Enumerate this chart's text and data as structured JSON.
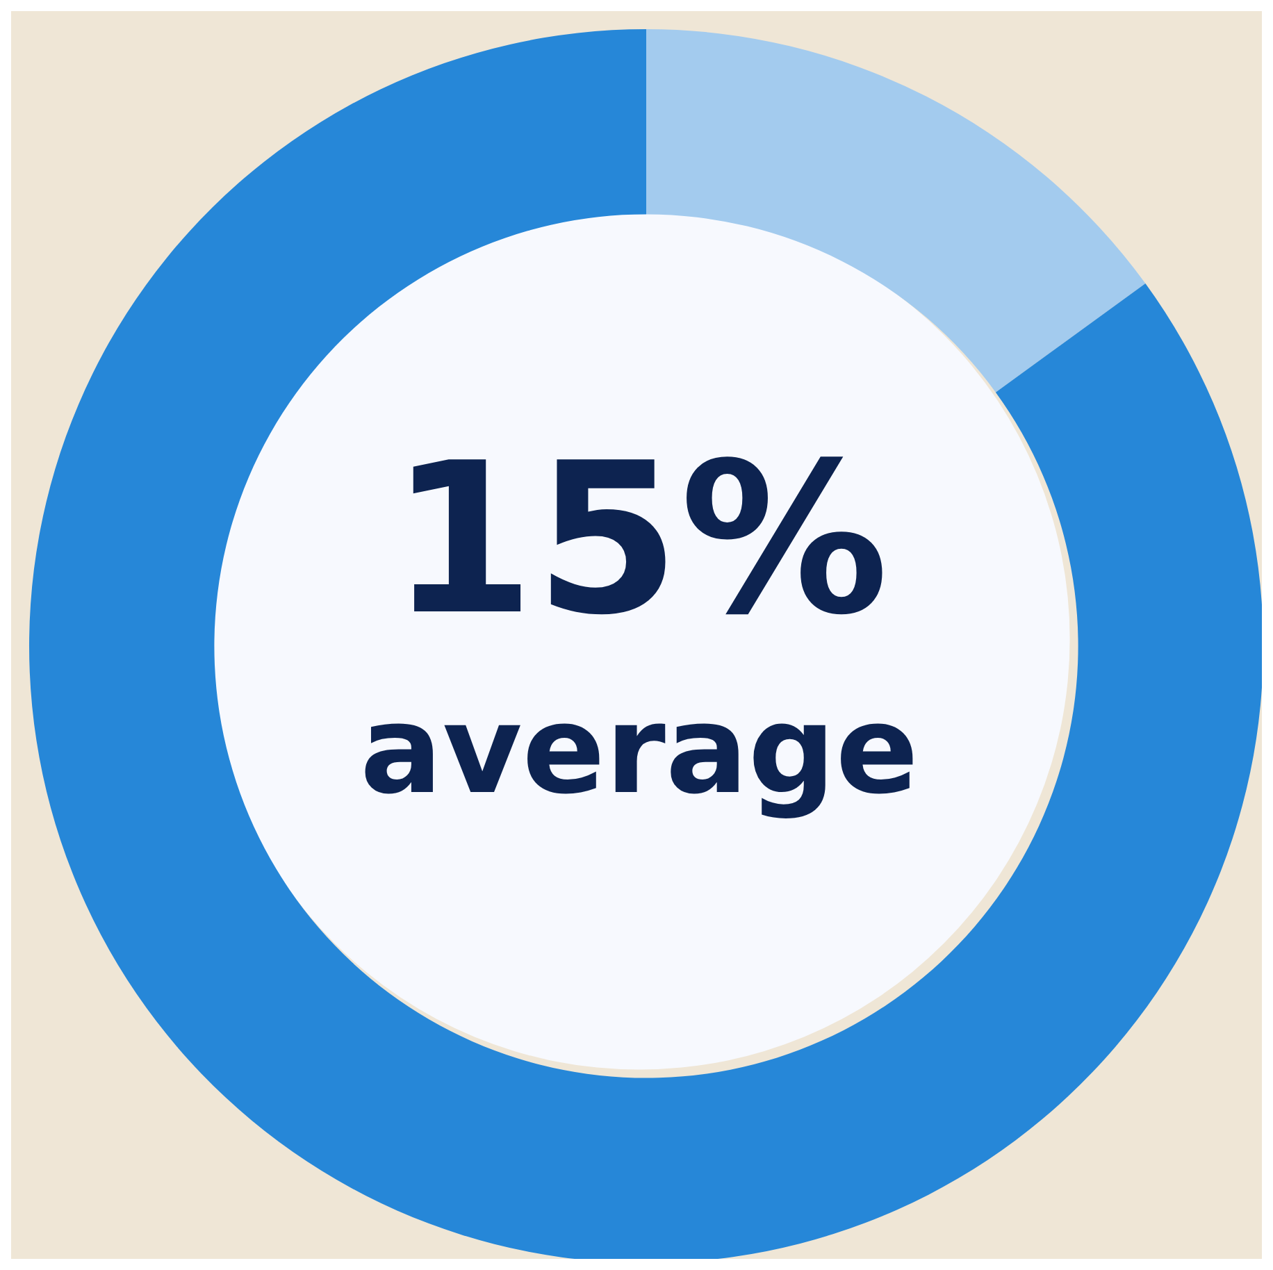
{
  "chart_data": {
    "type": "donut",
    "categories": [
      null,
      null
    ],
    "values": [
      15,
      85
    ],
    "colors": [
      "#a3cbee",
      "#2687d8"
    ],
    "annotations": [
      "15%",
      "average"
    ]
  }
}
